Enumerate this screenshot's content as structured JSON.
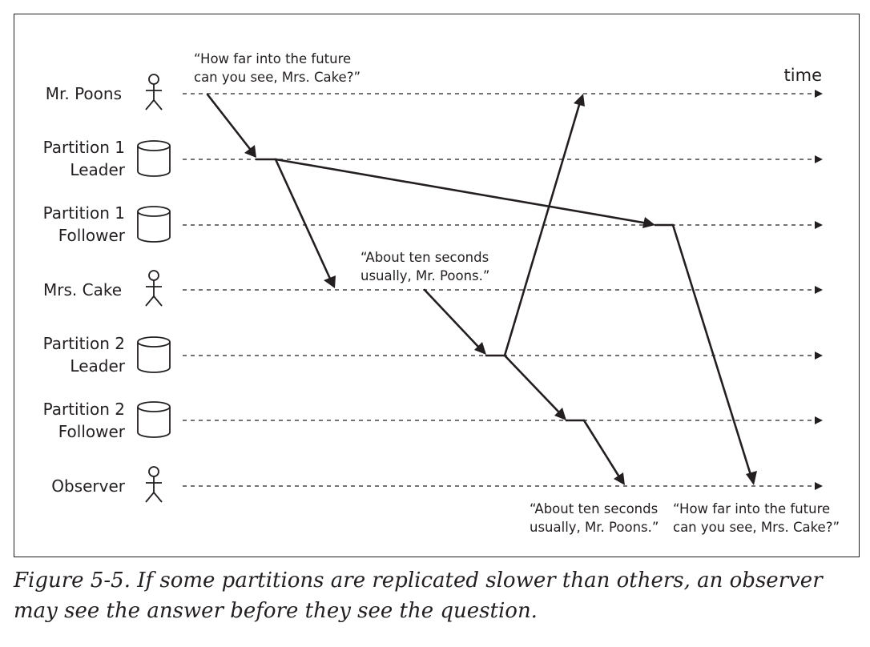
{
  "diagram": {
    "time_label": "time",
    "lanes": [
      {
        "id": "mr-poons",
        "icon": "person-icon",
        "lines": [
          "Mr. Poons"
        ]
      },
      {
        "id": "partition-1-leader",
        "icon": "database-icon",
        "lines": [
          "Partition 1",
          "Leader"
        ]
      },
      {
        "id": "partition-1-follower",
        "icon": "database-icon",
        "lines": [
          "Partition 1",
          "Follower"
        ]
      },
      {
        "id": "mrs-cake",
        "icon": "person-icon",
        "lines": [
          "Mrs. Cake"
        ]
      },
      {
        "id": "partition-2-leader",
        "icon": "database-icon",
        "lines": [
          "Partition 2",
          "Leader"
        ]
      },
      {
        "id": "partition-2-follower",
        "icon": "database-icon",
        "lines": [
          "Partition 2",
          "Follower"
        ]
      },
      {
        "id": "observer",
        "icon": "person-icon",
        "lines": [
          "Observer"
        ]
      }
    ],
    "quotes": {
      "poons_question": [
        "“How far into the future",
        "can you see, Mrs. Cake?”"
      ],
      "cake_answer": [
        "“About ten seconds",
        "usually, Mr. Poons.”"
      ],
      "observer_answer": [
        "“About ten seconds",
        "usually, Mr. Poons.”"
      ],
      "observer_question": [
        "“How far into the future",
        "can you see, Mrs. Cake?”"
      ]
    }
  },
  "caption": {
    "text": "Figure 5-5. If some partitions are replicated slower than others, an observer may see the answer before they see the question."
  }
}
